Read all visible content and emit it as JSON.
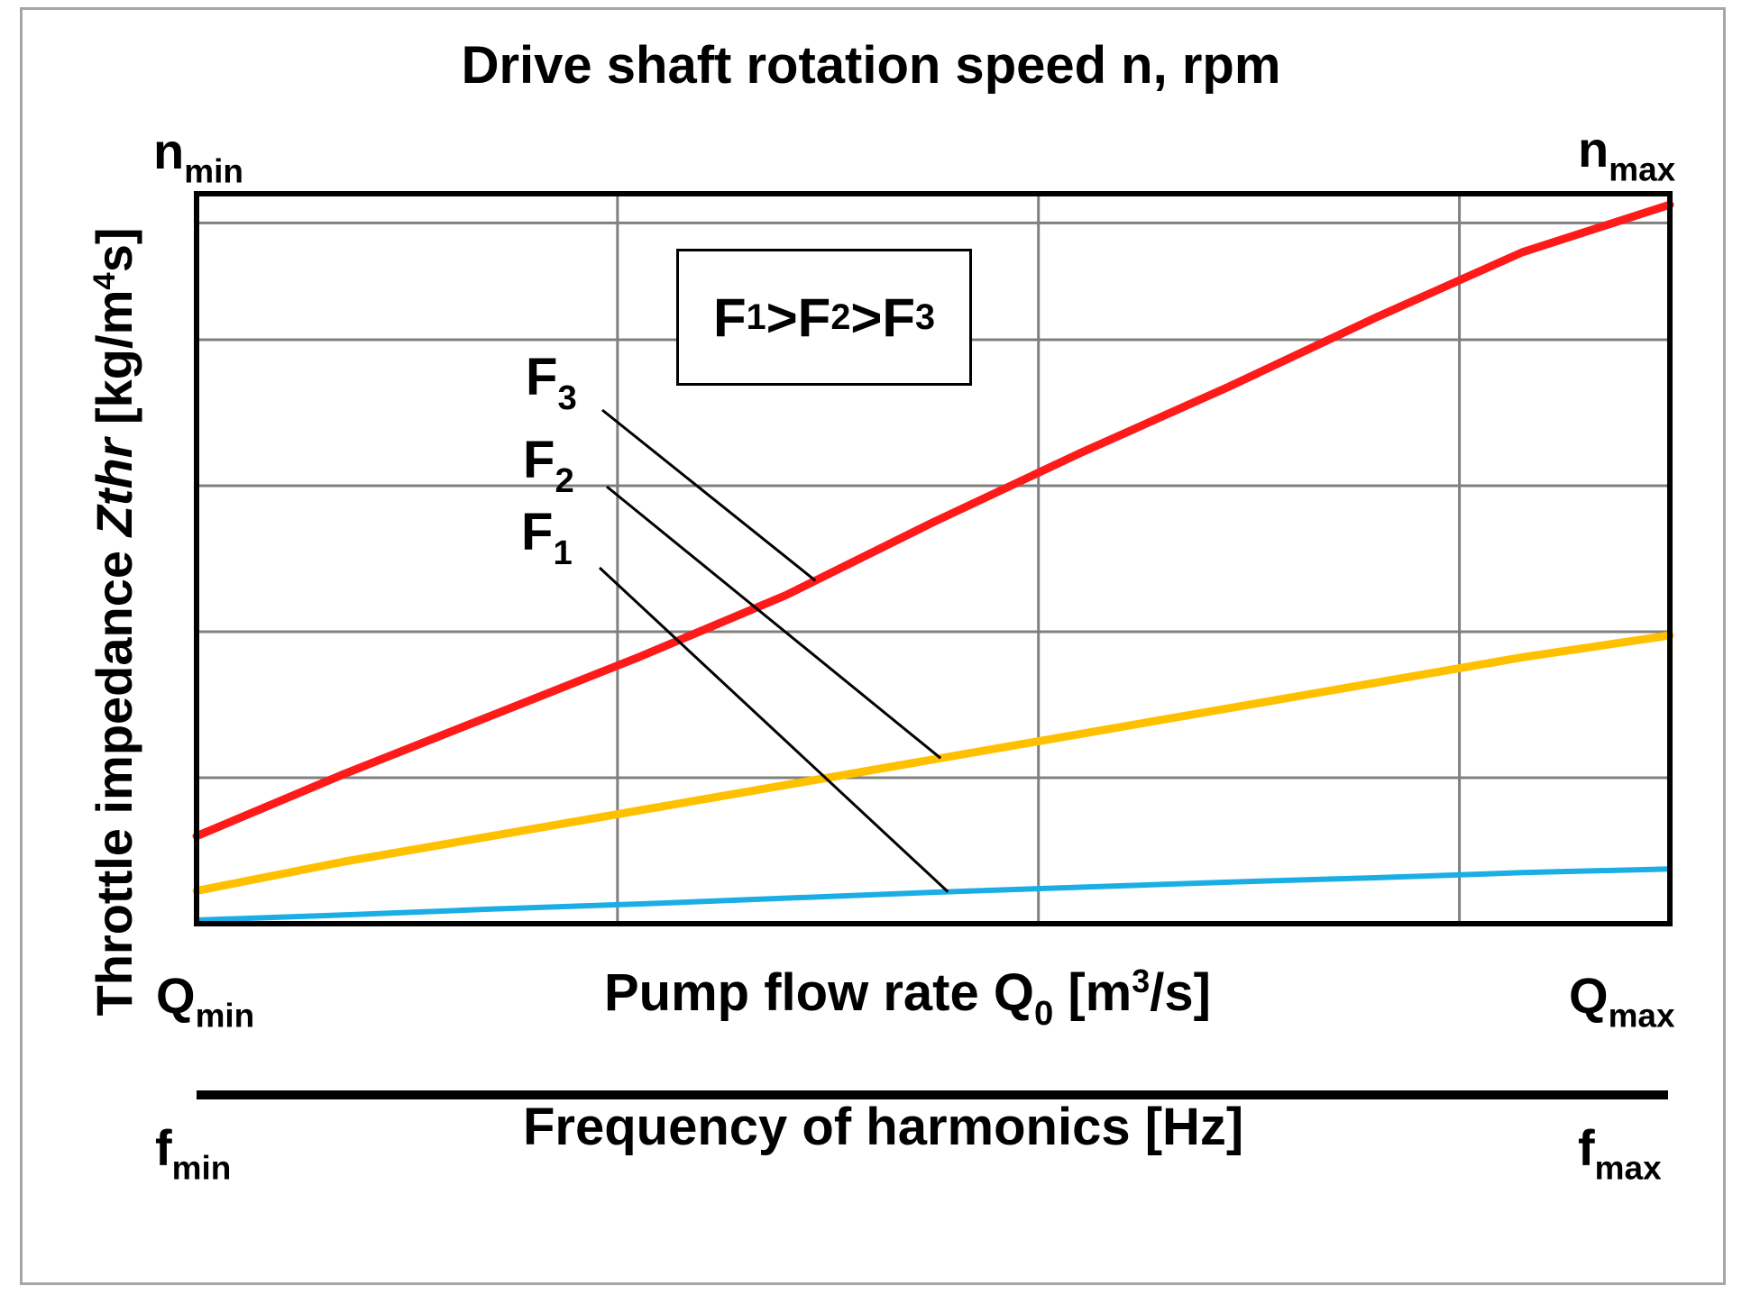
{
  "title": "Drive shaft rotation speed n, rpm",
  "top_axis": {
    "min_base": "n",
    "min_sub": "min",
    "max_base": "n",
    "max_sub": "max"
  },
  "x_axis_1": {
    "label_main": "Pump flow rate Q",
    "label_sub": "0",
    "label_unit_open": " [m",
    "label_sup": "3",
    "label_unit_close": "/s]",
    "min_base": "Q",
    "min_sub": "min",
    "max_base": "Q",
    "max_sub": "max"
  },
  "x_axis_2": {
    "label": "Frequency of harmonics [Hz]",
    "min_base": "f",
    "min_sub": "min",
    "max_base": "f",
    "max_sub": "max"
  },
  "y_axis": {
    "label_plain": "Throttle impedance ",
    "label_italic": "Zthr",
    "label_unit_open": " [kg/m",
    "label_sup": "4",
    "label_unit_close": "s]"
  },
  "legend": {
    "f1_base": "F",
    "f1_sub": "1",
    "f2_base": "F",
    "f2_sub": "2",
    "f3_base": "F",
    "f3_sub": "3",
    "gt": ">"
  },
  "chart_data": {
    "type": "line",
    "title": "Drive shaft rotation speed n, rpm",
    "xlabel": "Pump flow rate Q0 [m3/s]",
    "ylabel": "Throttle impedance Zthr [kg/m4s]",
    "x": [
      0,
      0.1,
      0.2,
      0.3,
      0.4,
      0.5,
      0.6,
      0.7,
      0.8,
      0.9,
      1.0
    ],
    "xlim": [
      0,
      1
    ],
    "ylim": [
      0,
      1
    ],
    "grid": true,
    "series": [
      {
        "name": "F3",
        "color": "#ff1a1a",
        "values": [
          0.12,
          0.205,
          0.285,
          0.365,
          0.45,
          0.55,
          0.645,
          0.735,
          0.83,
          0.92,
          0.985
        ]
      },
      {
        "name": "F2",
        "color": "#ffc000",
        "values": [
          0.045,
          0.085,
          0.12,
          0.155,
          0.19,
          0.225,
          0.26,
          0.295,
          0.33,
          0.365,
          0.395
        ]
      },
      {
        "name": "F1",
        "color": "#1aaee5",
        "values": [
          0.005,
          0.012,
          0.02,
          0.027,
          0.035,
          0.043,
          0.05,
          0.057,
          0.063,
          0.07,
          0.075
        ]
      }
    ]
  }
}
